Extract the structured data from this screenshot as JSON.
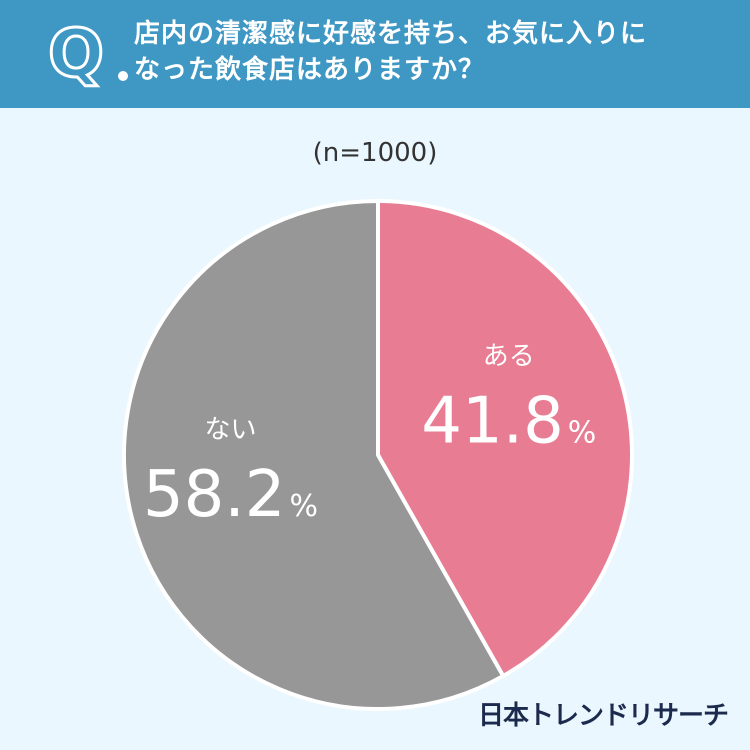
{
  "question": {
    "line1": "店内の清潔感に好感を持ち、お気に入りに",
    "line2": "なった飲食店はありますか？"
  },
  "sample_label": "(n=1000)",
  "brand": "日本トレンドリサーチ",
  "colors": {
    "header_bg": "#3f97c4",
    "page_bg": "#eaf7fe",
    "yes": "#e77c92",
    "no": "#979797"
  },
  "chart_data": {
    "type": "pie",
    "title": "",
    "slices": [
      {
        "label": "ある",
        "value": 41.8,
        "display": "41.8",
        "unit": "%",
        "color": "#e77c92"
      },
      {
        "label": "ない",
        "value": 58.2,
        "display": "58.2",
        "unit": "%",
        "color": "#979797"
      }
    ],
    "start": "12 o'clock",
    "direction": "clockwise"
  }
}
